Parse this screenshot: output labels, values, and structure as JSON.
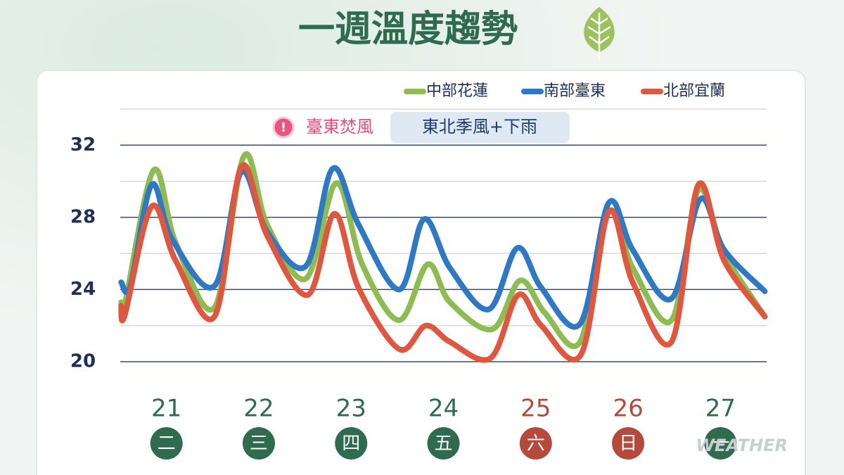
{
  "chart_data": {
    "type": "line",
    "title": "一週溫度趨勢",
    "xlim": [
      20.5,
      27.5
    ],
    "xticks": [
      21,
      22,
      23,
      24,
      25,
      26,
      27
    ],
    "weekday_labels": [
      "二",
      "三",
      "四",
      "五",
      "六",
      "日",
      "一"
    ],
    "xtick_colors": [
      "#2e6b4f",
      "#2e6b4f",
      "#2e6b4f",
      "#2e6b4f",
      "#b34a3c",
      "#b34a3c",
      "#2e6b4f"
    ],
    "ylim": [
      20,
      34
    ],
    "yticks": [
      20,
      24,
      28,
      32
    ],
    "minor_yticks": [
      22,
      26,
      30,
      34
    ],
    "grid": true,
    "legend": "top-right",
    "annotations": [
      "臺東焚風",
      "東北季風+下雨"
    ],
    "watermark": "WEATHER",
    "series": [
      {
        "name": "中部花蓮",
        "color": "#8fbc52",
        "x": [
          20.51,
          20.55,
          20.86,
          21.1,
          21.52,
          21.84,
          22.09,
          22.51,
          22.84,
          23.12,
          23.52,
          23.83,
          24.07,
          24.53,
          24.83,
          25.1,
          25.48,
          25.79,
          26.05,
          26.47,
          26.76,
          27.04,
          27.48
        ],
        "values": [
          23.3,
          23.2,
          30.6,
          26.6,
          23.0,
          31.4,
          27.6,
          24.6,
          29.9,
          25.4,
          22.3,
          25.4,
          23.3,
          21.8,
          24.5,
          22.7,
          21.1,
          28.3,
          25.2,
          22.3,
          29.5,
          26.0,
          22.5
        ]
      },
      {
        "name": "南部臺東",
        "color": "#2f78c4",
        "x": [
          20.51,
          20.61,
          20.84,
          21.06,
          21.52,
          21.81,
          22.09,
          22.51,
          22.8,
          23.08,
          23.52,
          23.79,
          24.07,
          24.49,
          24.8,
          25.06,
          25.48,
          25.79,
          26.05,
          26.47,
          26.78,
          27.04,
          27.48
        ],
        "values": [
          24.4,
          24.2,
          29.8,
          26.8,
          24.2,
          30.5,
          27.2,
          25.3,
          30.7,
          27.6,
          24.0,
          27.9,
          25.2,
          22.9,
          26.3,
          24.1,
          22.1,
          28.8,
          26.2,
          23.5,
          29.0,
          26.2,
          23.9
        ]
      },
      {
        "name": "北部宜蘭",
        "color": "#e0573f",
        "x": [
          20.51,
          20.55,
          20.84,
          21.1,
          21.52,
          21.81,
          22.09,
          22.53,
          22.82,
          23.08,
          23.52,
          23.81,
          24.07,
          24.51,
          24.81,
          25.06,
          25.49,
          25.79,
          26.05,
          26.47,
          26.76,
          27.04,
          27.48
        ],
        "values": [
          23.1,
          22.6,
          28.6,
          25.6,
          22.5,
          30.8,
          27.0,
          23.7,
          28.2,
          24.1,
          20.7,
          22.0,
          21.1,
          20.2,
          23.7,
          22.0,
          20.4,
          28.3,
          24.4,
          21.1,
          29.8,
          25.6,
          22.5
        ]
      }
    ]
  }
}
